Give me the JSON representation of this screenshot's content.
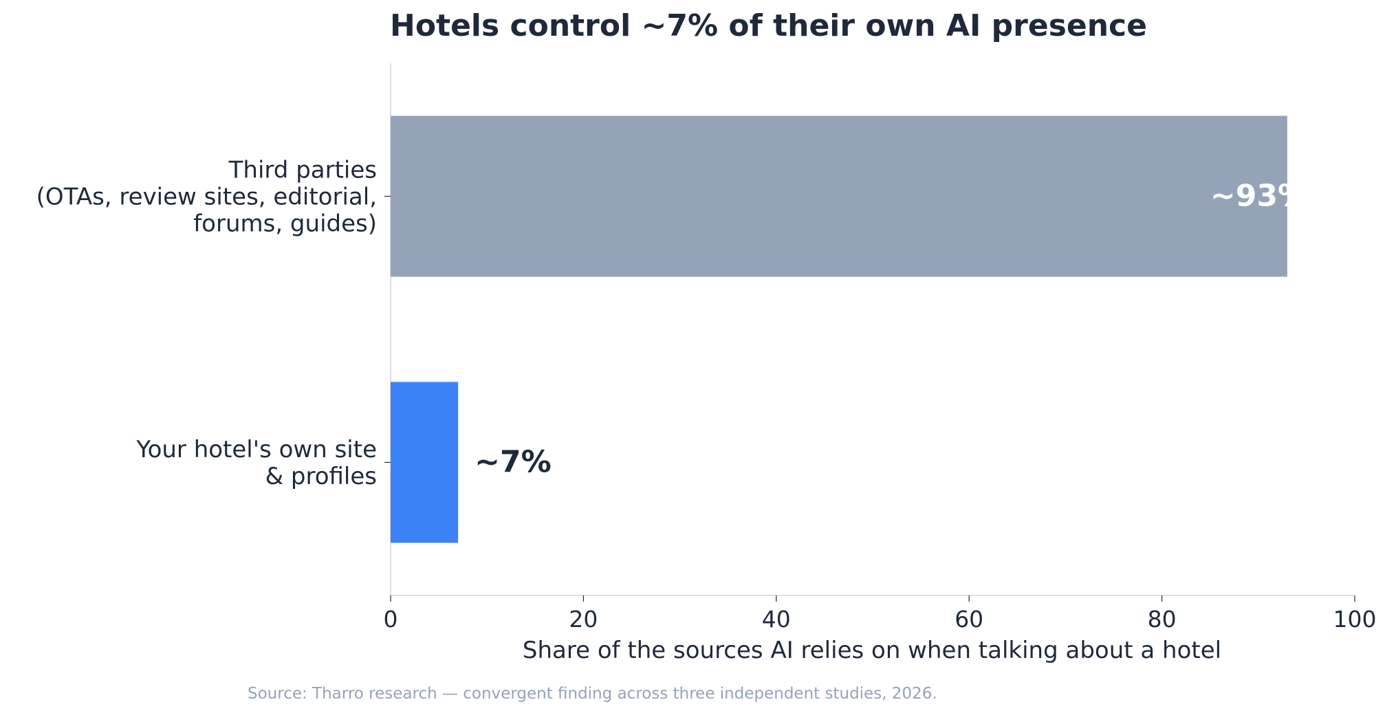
{
  "chart_data": {
    "type": "bar",
    "orientation": "horizontal",
    "title": "Hotels control ~7% of their own AI presence",
    "categories": [
      [
        "Third parties",
        "(OTAs, review sites, editorial,",
        "forums, guides)"
      ],
      [
        "Your hotel's own site",
        "& profiles"
      ]
    ],
    "values": [
      93,
      7
    ],
    "value_labels": [
      "~93%",
      "~7%"
    ],
    "bar_colors": [
      "#94a3b8",
      "#3b82f6"
    ],
    "xlabel": "Share of the sources AI relies on when talking about a hotel",
    "ylabel": "",
    "xlim": [
      0,
      100
    ],
    "xticks": [
      "0",
      "20",
      "40",
      "60",
      "80",
      "100"
    ],
    "grid": false,
    "source": "Source: Tharro research — convergent finding across three independent studies, 2026."
  },
  "colors": {
    "text": "#1e293b",
    "axis": "#cbd5e1",
    "source": "#94a3b8",
    "label_on_bar": "#ffffff"
  }
}
